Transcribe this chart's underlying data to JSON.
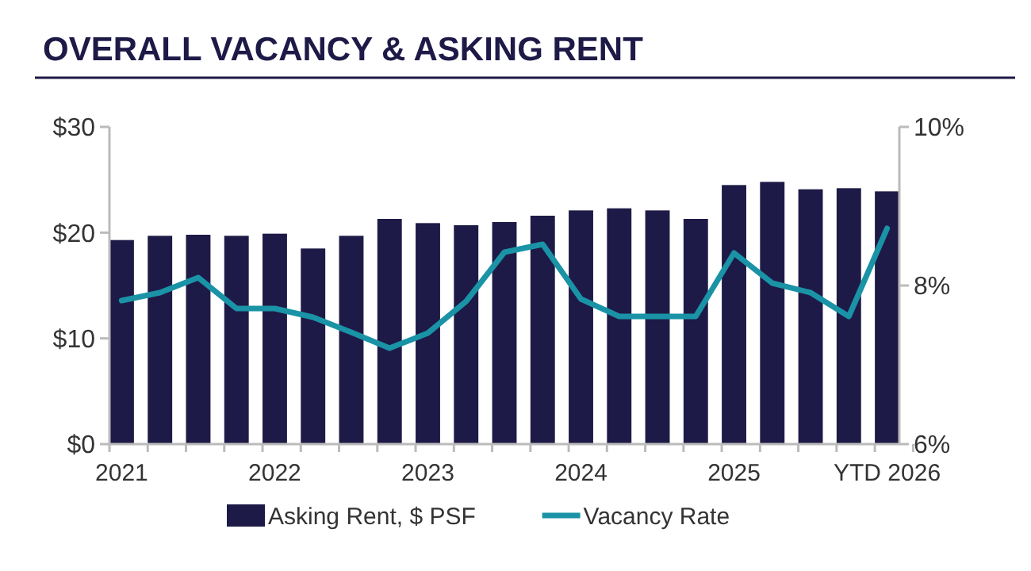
{
  "chart_data": {
    "type": "bar",
    "title": "OVERALL VACANCY & ASKING RENT",
    "categories": [
      "2021",
      null,
      null,
      null,
      "2022",
      null,
      null,
      null,
      "2023",
      null,
      null,
      null,
      "2024",
      null,
      null,
      null,
      "2025",
      null,
      null,
      null,
      "YTD 2026"
    ],
    "series": [
      {
        "name": "Asking Rent, $ PSF",
        "color": "#1e1a47",
        "values": [
          19.3,
          19.7,
          19.8,
          19.7,
          19.9,
          18.5,
          19.7,
          21.3,
          20.9,
          20.7,
          21.0,
          21.6,
          22.1,
          22.3,
          22.1,
          21.3,
          24.5,
          24.8,
          24.1,
          24.2,
          23.9
        ]
      },
      {
        "name": "Vacancy Rate",
        "type": "line",
        "axis": "y2",
        "color": "#1a93a6",
        "values": [
          7.81,
          7.91,
          8.1,
          7.71,
          7.71,
          7.6,
          7.41,
          7.21,
          7.4,
          7.8,
          8.42,
          8.52,
          7.83,
          7.61,
          7.61,
          7.61,
          8.41,
          8.03,
          7.91,
          7.61,
          8.72
        ]
      }
    ],
    "ylim": [
      0,
      30
    ],
    "yticks": [
      {
        "value": 0,
        "label": "$0"
      },
      {
        "value": 10,
        "label": "$10"
      },
      {
        "value": 20,
        "label": "$20"
      },
      {
        "value": 30,
        "label": "$30"
      }
    ],
    "y2lim": [
      6,
      10
    ],
    "y2ticks": [
      {
        "value": 6,
        "label": "6%"
      },
      {
        "value": 8,
        "label": "8%"
      },
      {
        "value": 10,
        "label": "10%"
      }
    ],
    "grid": false,
    "legend": "bottom",
    "marker": "none"
  }
}
